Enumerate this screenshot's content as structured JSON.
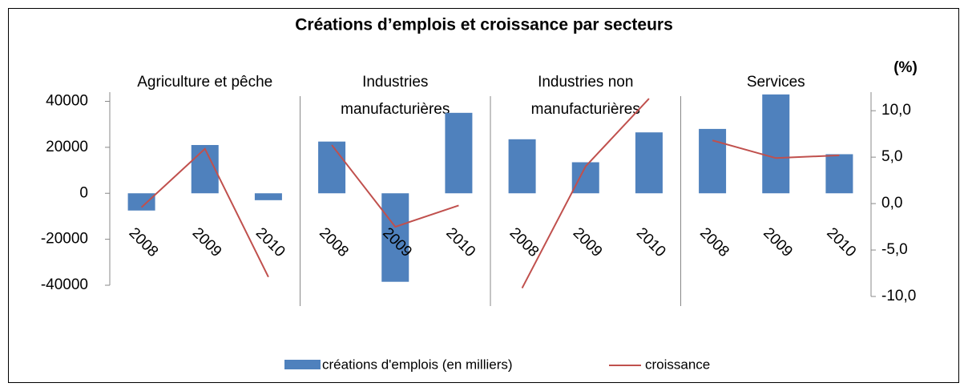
{
  "chart_data": {
    "type": "bar-line",
    "title": "Créations d’emplois et croissance par secteurs",
    "y2_label": "(%)",
    "series": [
      {
        "name": "créations d'emplois (en milliers)",
        "color": "#4f81bd"
      },
      {
        "name": "croissance",
        "color": "#c0504d",
        "axis": "y2"
      }
    ],
    "groups": [
      {
        "name": [
          "Agriculture et pêche"
        ],
        "categories": [
          "2008",
          "2009",
          "2010"
        ],
        "values": [
          -7500,
          21000,
          -3000
        ],
        "growth": [
          -0.4,
          5.9,
          -7.9
        ]
      },
      {
        "name": [
          "Industries",
          "manufacturières"
        ],
        "categories": [
          "2008",
          "2009",
          "2010"
        ],
        "values": [
          22500,
          -38500,
          35000
        ],
        "growth": [
          6.3,
          -2.5,
          -0.2
        ]
      },
      {
        "name": [
          "Industries non",
          "manufacturières"
        ],
        "categories": [
          "2008",
          "2009",
          "2010"
        ],
        "values": [
          23500,
          13500,
          26500
        ],
        "growth": [
          -9.1,
          4.0,
          11.3
        ]
      },
      {
        "name": [
          "Services"
        ],
        "categories": [
          "2008",
          "2009",
          "2010"
        ],
        "values": [
          28000,
          43000,
          17000
        ],
        "growth": [
          6.8,
          4.9,
          5.2
        ]
      }
    ],
    "ylim": [
      -40000,
      44000
    ],
    "yticks": [
      -40000,
      -20000,
      0,
      20000,
      40000
    ],
    "y2lim": [
      -10,
      12
    ],
    "y2ticks": [
      {
        "value": -10,
        "label": "-10,0"
      },
      {
        "value": -5,
        "label": "-5,0"
      },
      {
        "value": 0,
        "label": "0,0"
      },
      {
        "value": 5,
        "label": "5,0"
      },
      {
        "value": 10,
        "label": "10,0"
      }
    ]
  }
}
